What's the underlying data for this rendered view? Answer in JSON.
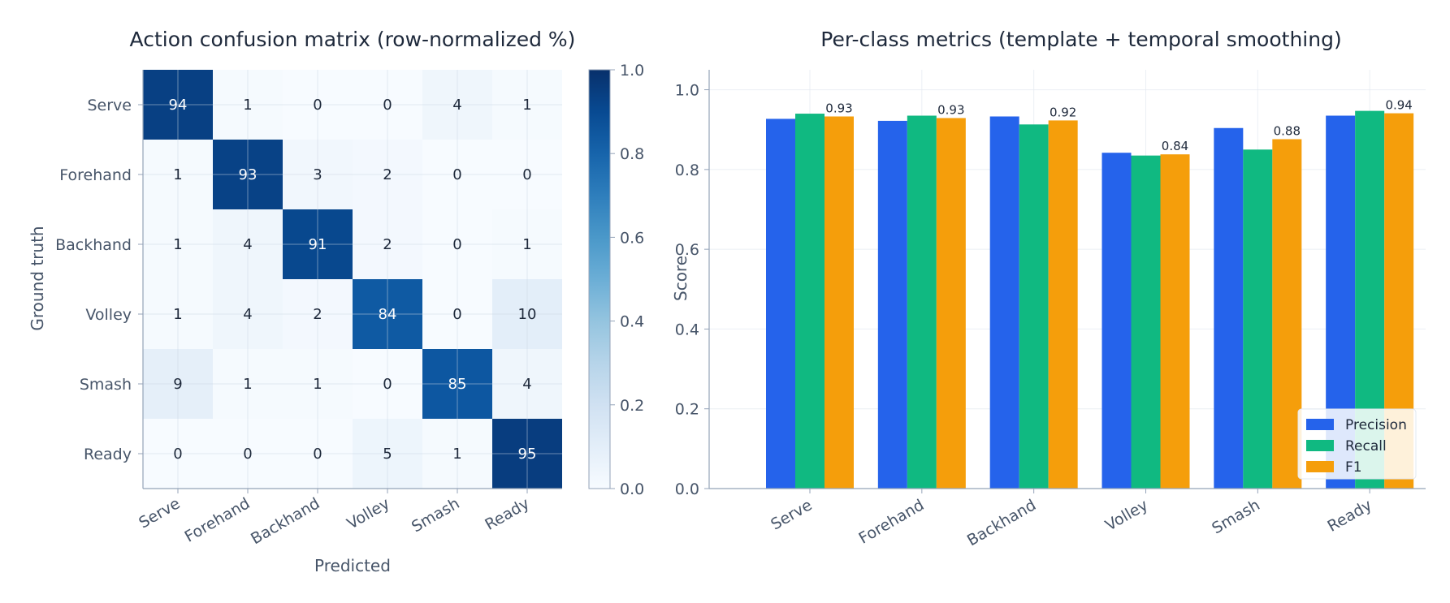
{
  "chart_data": [
    {
      "type": "heatmap",
      "title": "Action confusion matrix (row-normalized %)",
      "xlabel": "Predicted",
      "ylabel": "Ground truth",
      "x_categories": [
        "Serve",
        "Forehand",
        "Backhand",
        "Volley",
        "Smash",
        "Ready"
      ],
      "y_categories": [
        "Serve",
        "Forehand",
        "Backhand",
        "Volley",
        "Smash",
        "Ready"
      ],
      "values": [
        [
          94,
          1,
          0,
          0,
          4,
          1
        ],
        [
          1,
          93,
          3,
          2,
          0,
          0
        ],
        [
          1,
          4,
          91,
          2,
          0,
          1
        ],
        [
          1,
          4,
          2,
          84,
          0,
          10
        ],
        [
          9,
          1,
          1,
          0,
          85,
          4
        ],
        [
          0,
          0,
          0,
          5,
          1,
          95
        ]
      ],
      "colorbar": {
        "range": [
          0.0,
          1.0
        ],
        "ticks": [
          "0.0",
          "0.2",
          "0.4",
          "0.6",
          "0.8",
          "1.0"
        ],
        "colormap": "Blues"
      },
      "grid": true
    },
    {
      "type": "bar",
      "title": "Per-class metrics (template + temporal smoothing)",
      "xlabel": "",
      "ylabel": "Score",
      "categories": [
        "Serve",
        "Forehand",
        "Backhand",
        "Volley",
        "Smash",
        "Ready"
      ],
      "series": [
        {
          "name": "Precision",
          "color": "#2563eb",
          "values": [
            0.927,
            0.922,
            0.933,
            0.842,
            0.904,
            0.935
          ]
        },
        {
          "name": "Recall",
          "color": "#10b981",
          "values": [
            0.94,
            0.935,
            0.913,
            0.835,
            0.85,
            0.947
          ]
        },
        {
          "name": "F1",
          "color": "#f59e0b",
          "values": [
            0.933,
            0.929,
            0.923,
            0.838,
            0.876,
            0.941
          ]
        }
      ],
      "data_labels": [
        "0.93",
        "0.93",
        "0.92",
        "0.84",
        "0.88",
        "0.94"
      ],
      "ylim": [
        0.0,
        1.05
      ],
      "yticks": [
        "0.0",
        "0.2",
        "0.4",
        "0.6",
        "0.8",
        "1.0"
      ],
      "legend": "bottom-right",
      "grid": true
    }
  ]
}
